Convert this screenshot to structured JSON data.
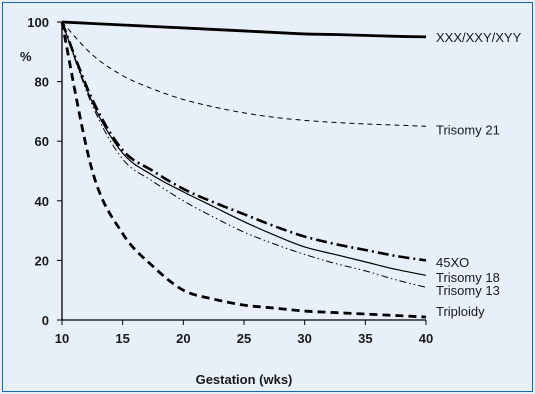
{
  "chart_data": {
    "type": "line",
    "title": "",
    "xlabel": "Gestation (wks)",
    "ylabel": "%",
    "xlim": [
      10,
      40
    ],
    "ylim": [
      0,
      100
    ],
    "xticks": [
      10,
      15,
      20,
      25,
      30,
      35,
      40
    ],
    "yticks": [
      0,
      20,
      40,
      60,
      80,
      100
    ],
    "grid": false,
    "legend": "direct labels at right end of lines",
    "x": [
      10,
      12.5,
      15,
      17.5,
      20,
      22.5,
      25,
      27.5,
      30,
      32.5,
      35,
      37.5,
      40
    ],
    "series": [
      {
        "name": "XXX/XXY/XYY",
        "style": "solid-thick",
        "values": [
          100,
          99.5,
          99,
          98.5,
          98,
          97.5,
          97,
          96.5,
          96,
          95.8,
          95.5,
          95.2,
          95
        ]
      },
      {
        "name": "Trisomy 21",
        "style": "dashed-thin",
        "values": [
          100,
          89,
          82,
          77.5,
          74,
          71.5,
          69.5,
          68,
          67,
          66.3,
          65.8,
          65.4,
          65
        ]
      },
      {
        "name": "45XO",
        "style": "dash-dot-thick",
        "values": [
          100,
          74,
          57,
          50,
          44,
          39.5,
          35.5,
          31.5,
          28,
          25.5,
          23.5,
          21.5,
          20
        ]
      },
      {
        "name": "Trisomy 18",
        "style": "solid-thin",
        "values": [
          100,
          73,
          56,
          48.5,
          43,
          38,
          33,
          28.5,
          24.5,
          22,
          19.5,
          17,
          15
        ]
      },
      {
        "name": "Trisomy 13",
        "style": "dash-dot-dot-thin",
        "values": [
          100,
          72,
          54,
          46.5,
          40,
          34.5,
          29.5,
          25.5,
          22,
          19,
          16.5,
          13.5,
          11
        ]
      },
      {
        "name": "Triploidy",
        "style": "dashed-thick",
        "values": [
          100,
          50,
          29,
          18,
          10,
          7,
          5,
          4,
          3,
          2.5,
          2,
          1.5,
          1
        ]
      }
    ]
  }
}
